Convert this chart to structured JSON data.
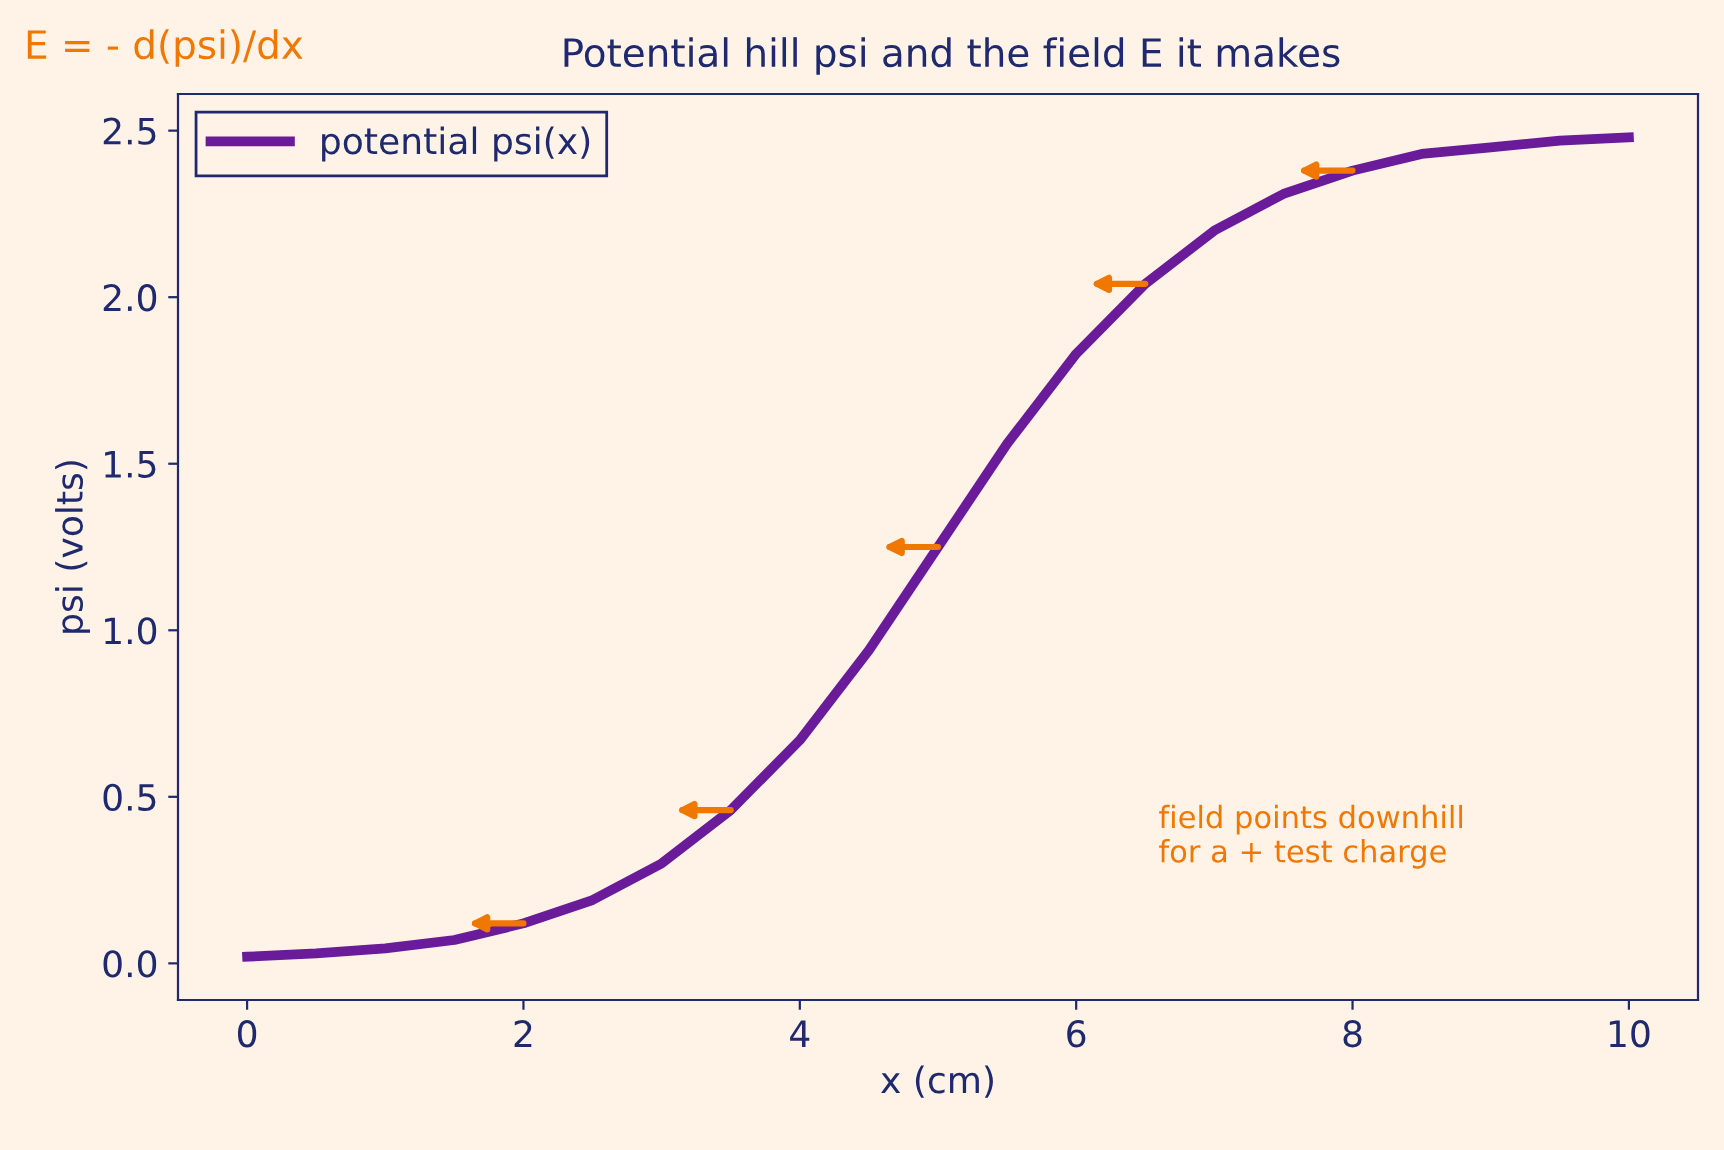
{
  "chart_data": {
    "type": "line",
    "title": "Potential hill psi and the field E it makes",
    "xlabel": "x (cm)",
    "ylabel": "psi (volts)",
    "x": [
      0,
      0.5,
      1,
      1.5,
      2,
      2.5,
      3,
      3.5,
      4,
      4.5,
      5,
      5.5,
      6,
      6.5,
      7,
      7.5,
      8,
      8.5,
      9,
      9.5,
      10
    ],
    "series": [
      {
        "name": "potential psi(x)",
        "color": "#6a1b9a",
        "values": [
          0.02,
          0.03,
          0.045,
          0.07,
          0.12,
          0.19,
          0.3,
          0.46,
          0.67,
          0.94,
          1.25,
          1.56,
          1.83,
          2.04,
          2.2,
          2.31,
          2.38,
          2.43,
          2.45,
          2.47,
          2.48
        ]
      }
    ],
    "annotations": [
      "E = - d(psi)/dx",
      "field points downhill\nfor a + test charge"
    ],
    "xlim": [
      -0.5,
      10.5
    ],
    "ylim": [
      -0.11,
      2.61
    ],
    "xticks": [
      0,
      2,
      4,
      6,
      8,
      10
    ],
    "yticks": [
      {
        "value": 0,
        "label": "0.0"
      },
      0.5,
      {
        "value": 1,
        "label": "1.0"
      },
      1.5,
      {
        "value": 2,
        "label": "2.0"
      },
      2.5
    ],
    "legend": "top left",
    "grid": false,
    "marker": "none",
    "line_style": "solid"
  }
}
